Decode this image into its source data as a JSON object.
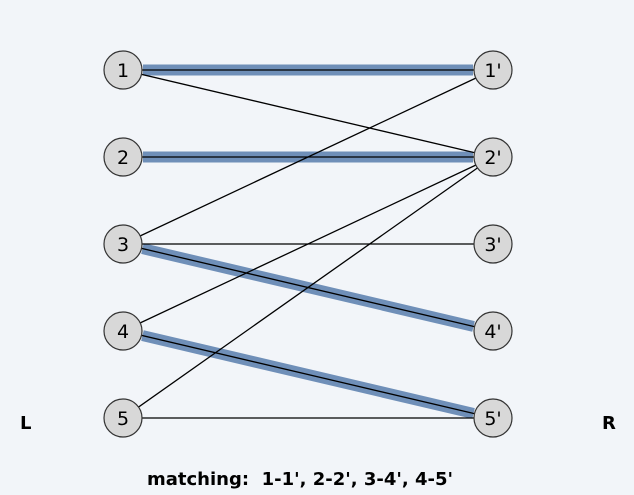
{
  "left_side_label": "L",
  "right_side_label": "R",
  "caption": "matching:  1-1', 2-2', 3-4', 4-5'",
  "colors": {
    "highlight": "#6f8fb8",
    "node_fill": "#d8d8d8",
    "node_stroke": "#333333",
    "edge": "#000000",
    "background": "#f2f5f9"
  },
  "left_nodes": [
    {
      "id": "1",
      "label": "1"
    },
    {
      "id": "2",
      "label": "2"
    },
    {
      "id": "3",
      "label": "3"
    },
    {
      "id": "4",
      "label": "4"
    },
    {
      "id": "5",
      "label": "5"
    }
  ],
  "right_nodes": [
    {
      "id": "1'",
      "label": "1'"
    },
    {
      "id": "2'",
      "label": "2'"
    },
    {
      "id": "3'",
      "label": "3'"
    },
    {
      "id": "4'",
      "label": "4'"
    },
    {
      "id": "5'",
      "label": "5'"
    }
  ],
  "edges": [
    {
      "from": "1",
      "to": "1'",
      "matched": true
    },
    {
      "from": "1",
      "to": "2'",
      "matched": false
    },
    {
      "from": "2",
      "to": "2'",
      "matched": true
    },
    {
      "from": "3",
      "to": "1'",
      "matched": false
    },
    {
      "from": "3",
      "to": "3'",
      "matched": false
    },
    {
      "from": "3",
      "to": "4'",
      "matched": true
    },
    {
      "from": "4",
      "to": "2'",
      "matched": false
    },
    {
      "from": "4",
      "to": "5'",
      "matched": true
    },
    {
      "from": "5",
      "to": "2'",
      "matched": false
    },
    {
      "from": "5",
      "to": "5'",
      "matched": false
    }
  ]
}
